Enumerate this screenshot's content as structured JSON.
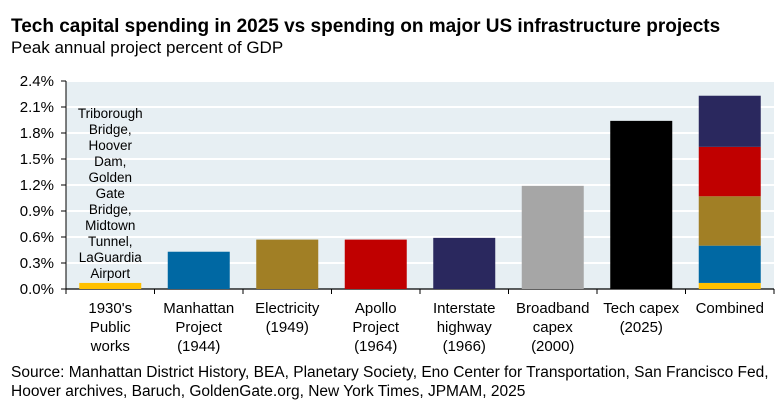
{
  "chart_data": {
    "type": "bar",
    "title": "Tech capital spending in 2025 vs spending on major US infrastructure projects",
    "subtitle": "Peak annual project percent of GDP",
    "xlabel": "",
    "ylabel": "",
    "ylim": [
      0,
      2.4
    ],
    "yticks": [
      "0.0%",
      "0.3%",
      "0.6%",
      "0.9%",
      "1.2%",
      "1.5%",
      "1.8%",
      "2.1%",
      "2.4%"
    ],
    "ytick_values": [
      0,
      0.3,
      0.6,
      0.9,
      1.2,
      1.5,
      1.8,
      2.1,
      2.4
    ],
    "grid": true,
    "categories": [
      [
        "1930's",
        "Public",
        "works"
      ],
      [
        "Manhattan",
        "Project",
        "(1944)"
      ],
      [
        "Electricity",
        "(1949)"
      ],
      [
        "Apollo",
        "Project",
        "(1964)"
      ],
      [
        "Interstate",
        "highway",
        "(1966)"
      ],
      [
        "Broadband",
        "capex",
        "(2000)"
      ],
      [
        "Tech capex",
        "(2025)"
      ],
      [
        "Combined"
      ]
    ],
    "values": [
      0.07,
      0.43,
      0.57,
      0.57,
      0.59,
      1.19,
      1.94,
      null
    ],
    "colors": [
      "#FFC000",
      "#0068A3",
      "#A17F25",
      "#C00000",
      "#2A285E",
      "#A6A6A6",
      "#000000",
      null
    ],
    "combined_stack": [
      {
        "name": "1930's Public works",
        "value": 0.07,
        "color": "#FFC000"
      },
      {
        "name": "Manhattan Project",
        "value": 0.43,
        "color": "#0068A3"
      },
      {
        "name": "Electricity",
        "value": 0.57,
        "color": "#A17F25"
      },
      {
        "name": "Apollo Project",
        "value": 0.57,
        "color": "#C00000"
      },
      {
        "name": "Interstate highway",
        "value": 0.59,
        "color": "#2A285E"
      }
    ],
    "annotation": [
      "Triborough",
      "Bridge,",
      "Hoover",
      "Dam,",
      "Golden",
      "Gate",
      "Bridge,",
      "Midtown",
      "Tunnel,",
      "LaGuardia",
      "Airport"
    ],
    "plot_background": "#E7EFF3"
  },
  "source": "Source: Manhattan District History, BEA, Planetary Society, Eno Center for Transportation, San Francisco Fed, Hoover archives, Baruch, GoldenGate.org, New York Times, JPMAM, 2025"
}
